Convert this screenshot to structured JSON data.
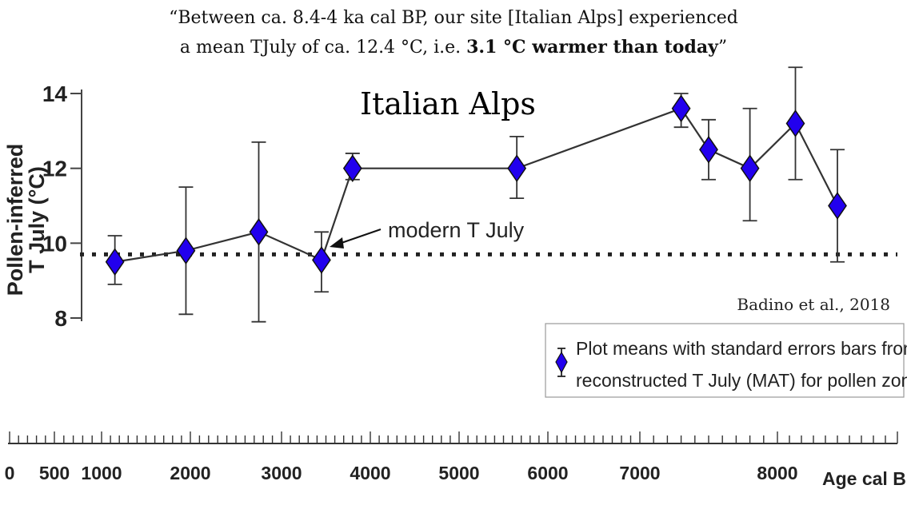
{
  "quote": {
    "line1": "“Between ca. 8.4-4 ka cal BP, our site [Italian Alps] experienced",
    "line2_pre": "a mean TJuly of ca. 12.4 °C, i.e. ",
    "line2_bold": "3.1 °C warmer than today",
    "line2_post": "”"
  },
  "chart_data": {
    "type": "line",
    "title": "Italian Alps",
    "ylabel_line1": "Pollen-inferred",
    "ylabel_line2": "T July (°C)",
    "xlabel": "Age cal BP",
    "ylim": [
      8,
      14
    ],
    "yticks": [
      "14",
      "12",
      "10",
      "8"
    ],
    "xticks": [
      "0",
      "500",
      "1000",
      "2000",
      "3000",
      "4000",
      "5000",
      "6000",
      "7000",
      "8000"
    ],
    "series": [
      {
        "points": [
          {
            "x": 1150,
            "y": 9.5,
            "lo": 8.9,
            "hi": 10.2
          },
          {
            "x": 1950,
            "y": 9.8,
            "lo": 8.1,
            "hi": 11.5
          },
          {
            "x": 2750,
            "y": 10.3,
            "lo": 7.9,
            "hi": 12.7
          },
          {
            "x": 3450,
            "y": 9.55,
            "lo": 8.7,
            "hi": 10.3
          },
          {
            "x": 3800,
            "y": 12.0,
            "lo": 11.7,
            "hi": 12.4
          },
          {
            "x": 5650,
            "y": 12.0,
            "lo": 11.2,
            "hi": 12.85
          },
          {
            "x": 7300,
            "y": 13.6,
            "lo": 13.1,
            "hi": 14.0
          },
          {
            "x": 7500,
            "y": 12.5,
            "lo": 11.7,
            "hi": 13.3
          },
          {
            "x": 7800,
            "y": 12.0,
            "lo": 10.6,
            "hi": 13.6
          },
          {
            "x": 8150,
            "y": 13.2,
            "lo": 11.7,
            "hi": 14.7
          },
          {
            "x": 8500,
            "y": 11.0,
            "lo": 9.5,
            "hi": 12.5
          }
        ]
      }
    ],
    "reference_line": {
      "label": "modern T July",
      "y": 9.7
    },
    "citation": "Badino et al., 2018",
    "legend": {
      "line1": "Plot means with standard errors bars from",
      "line2": "reconstructed T July (MAT) for pollen zones"
    },
    "colors": {
      "marker": "#2200ee",
      "line": "#333333",
      "text": "#222222"
    }
  }
}
